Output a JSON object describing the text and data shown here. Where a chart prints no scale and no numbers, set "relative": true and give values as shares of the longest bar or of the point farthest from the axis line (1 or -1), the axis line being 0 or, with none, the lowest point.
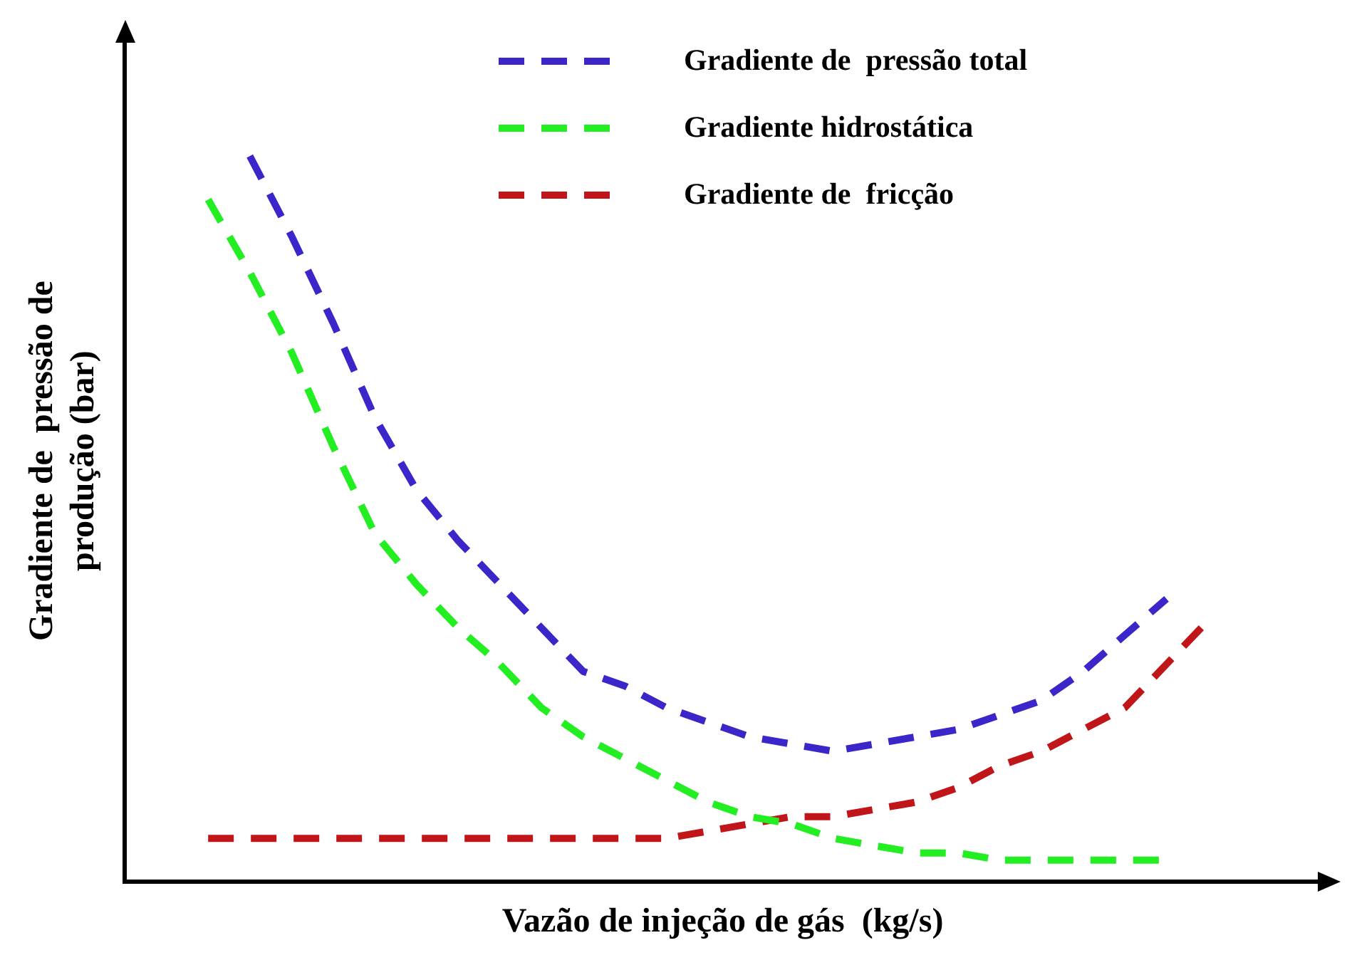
{
  "chart_data": {
    "type": "line",
    "relative": true,
    "xlabel": "Vazão de injeção de gás  (kg/s)",
    "ylabel": "Gradiente de  pressão de\nprodução (bar)",
    "categories": [
      null,
      null,
      null,
      null,
      null,
      null,
      null,
      null,
      null,
      null,
      null,
      null,
      null,
      null,
      null,
      null,
      null,
      null,
      null,
      null,
      null,
      null,
      null,
      null,
      null
    ],
    "series": [
      {
        "name": "Gradiente de  pressão total",
        "color": "#3b26c9",
        "values": [
          null,
          1.0,
          0.89,
          0.77,
          0.64,
          0.54,
          0.47,
          0.41,
          0.35,
          0.29,
          0.27,
          0.24,
          0.22,
          0.2,
          0.19,
          0.18,
          0.19,
          0.2,
          0.21,
          0.23,
          0.25,
          0.29,
          0.34,
          0.39,
          null
        ]
      },
      {
        "name": "Gradiente hidrostática",
        "color": "#22ee22",
        "values": [
          0.94,
          0.84,
          0.73,
          0.6,
          0.48,
          0.41,
          0.35,
          0.3,
          0.24,
          0.2,
          0.17,
          0.14,
          0.11,
          0.09,
          0.08,
          0.06,
          0.05,
          0.04,
          0.04,
          0.03,
          0.03,
          0.03,
          0.03,
          0.03,
          null
        ]
      },
      {
        "name": "Gradiente de  fricção",
        "color": "#c0161a",
        "values": [
          0.06,
          0.06,
          0.06,
          0.06,
          0.06,
          0.06,
          0.06,
          0.06,
          0.06,
          0.06,
          0.06,
          0.06,
          0.07,
          0.08,
          0.09,
          0.09,
          0.1,
          0.11,
          0.13,
          0.16,
          0.18,
          0.21,
          0.24,
          0.3,
          0.36
        ]
      }
    ],
    "legend": "top right",
    "grid": false,
    "tick_labels": false,
    "marker": "none",
    "line_style": "dashed"
  }
}
